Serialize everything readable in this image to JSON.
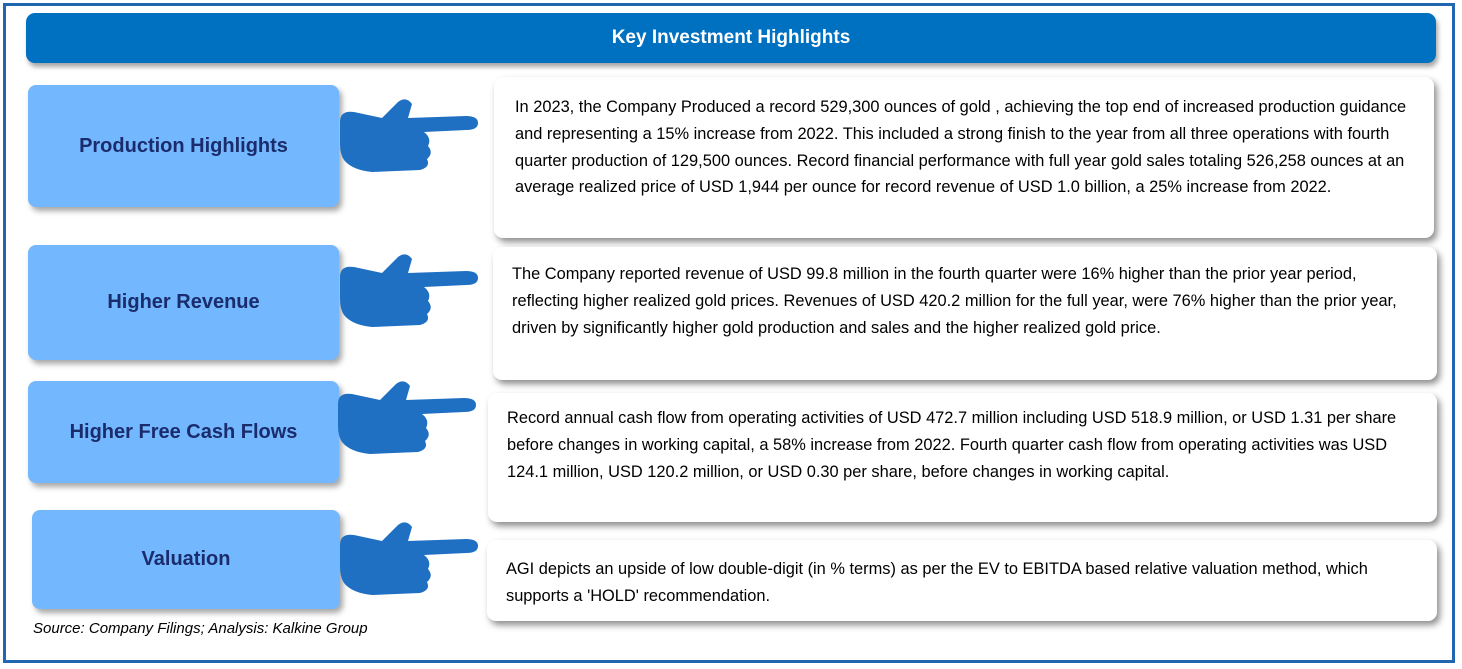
{
  "title": "Key Investment Highlights",
  "highlights": [
    {
      "label": "Production Highlights",
      "text": "In  2023, the Company Produced a record 529,300 ounces of gold , achieving the top end of increased production guidance and representing a 15% increase from 2022. This included a strong finish to the year from all three operations with fourth quarter production of 129,500 ounces. Record financial performance with full year gold sales totaling 526,258 ounces at an average realized price of USD 1,944 per ounce for record revenue of USD 1.0 billion, a 25% increase from 2022."
    },
    {
      "label": "Higher Revenue",
      "text": "The Company reported  revenue of USD 99.8 million in the fourth quarter were 16% higher than the prior year period, reflecting higher realized gold prices. Revenues of USD 420.2 million for the full year, were 76% higher than the prior year, driven by significantly higher gold production and sales and the higher realized gold price."
    },
    {
      "label": "Higher Free Cash Flows",
      "text": "Record annual cash flow from operating activities of USD 472.7 million including USD 518.9 million, or USD 1.31 per share before changes in working capital, a 58% increase from 2022. Fourth quarter cash flow from operating activities was USD 124.1 million, USD 120.2 million, or USD 0.30 per share, before changes in working capital."
    },
    {
      "label": "Valuation",
      "text": "AGI depicts an upside of low double-digit (in % terms) as per the EV to EBITDA based relative valuation method, which supports a 'HOLD' recommendation."
    }
  ],
  "source": "Source: Company Filings; Analysis: Kalkine Group",
  "colors": {
    "header_bg": "#0070c0",
    "label_bg": "#73b7ff",
    "label_text": "#1a2c6b",
    "hand": "#1f6fc2",
    "frame_border": "#1f67b1"
  }
}
